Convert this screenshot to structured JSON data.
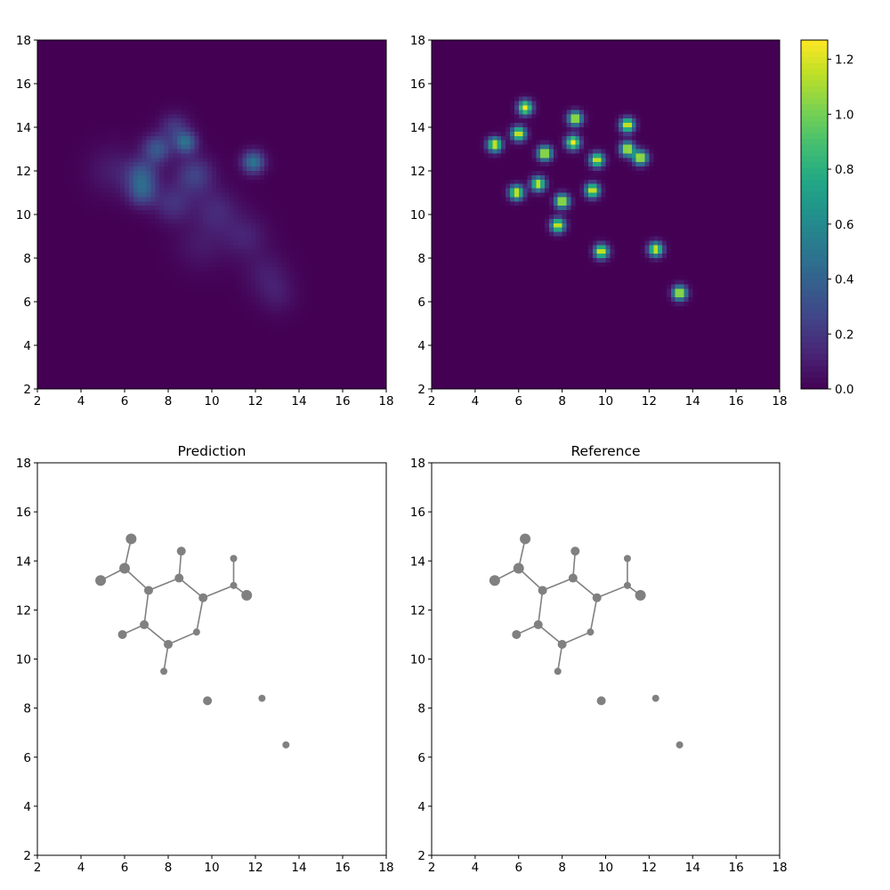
{
  "chart_data": [
    {
      "type": "heatmap",
      "panel": "top-left",
      "title": "",
      "xlim": [
        2,
        18
      ],
      "ylim": [
        2,
        18
      ],
      "x_ticks": [
        2,
        4,
        6,
        8,
        10,
        12,
        14,
        16,
        18
      ],
      "y_ticks": [
        2,
        4,
        6,
        8,
        10,
        12,
        14,
        16,
        18
      ],
      "colormap": "viridis",
      "blobs": [
        {
          "x": 8.8,
          "y": 13.3,
          "peak": 0.45,
          "sigma": 0.35
        },
        {
          "x": 11.9,
          "y": 12.4,
          "peak": 0.5,
          "sigma": 0.35
        },
        {
          "x": 7.5,
          "y": 13.0,
          "peak": 0.35,
          "sigma": 0.45
        },
        {
          "x": 6.8,
          "y": 11.8,
          "peak": 0.32,
          "sigma": 0.5
        },
        {
          "x": 6.8,
          "y": 11.0,
          "peak": 0.3,
          "sigma": 0.45
        },
        {
          "x": 8.3,
          "y": 14.0,
          "peak": 0.2,
          "sigma": 0.45
        },
        {
          "x": 9.2,
          "y": 11.8,
          "peak": 0.25,
          "sigma": 0.6
        },
        {
          "x": 8.2,
          "y": 10.5,
          "peak": 0.18,
          "sigma": 0.6
        },
        {
          "x": 10.2,
          "y": 10.2,
          "peak": 0.14,
          "sigma": 0.7
        },
        {
          "x": 11.5,
          "y": 9.0,
          "peak": 0.12,
          "sigma": 0.7
        },
        {
          "x": 5.5,
          "y": 12.0,
          "peak": 0.1,
          "sigma": 0.8
        },
        {
          "x": 12.5,
          "y": 7.3,
          "peak": 0.09,
          "sigma": 0.7
        },
        {
          "x": 13.0,
          "y": 6.3,
          "peak": 0.08,
          "sigma": 0.6
        },
        {
          "x": 9.5,
          "y": 8.6,
          "peak": 0.08,
          "sigma": 0.8
        }
      ]
    },
    {
      "type": "heatmap",
      "panel": "top-right",
      "title": "",
      "xlim": [
        2,
        18
      ],
      "ylim": [
        2,
        18
      ],
      "x_ticks": [
        2,
        4,
        6,
        8,
        10,
        12,
        14,
        16,
        18
      ],
      "y_ticks": [
        2,
        4,
        6,
        8,
        10,
        12,
        14,
        16,
        18
      ],
      "colormap": "viridis",
      "colorbar": {
        "min": 0.0,
        "max": 1.27,
        "ticks": [
          "0.0",
          "0.2",
          "0.4",
          "0.6",
          "0.8",
          "1.0",
          "1.2"
        ]
      },
      "peaks": [
        {
          "x": 4.9,
          "y": 13.2
        },
        {
          "x": 6.0,
          "y": 13.7
        },
        {
          "x": 6.3,
          "y": 14.9
        },
        {
          "x": 7.2,
          "y": 12.8
        },
        {
          "x": 6.9,
          "y": 11.4
        },
        {
          "x": 5.9,
          "y": 11.0
        },
        {
          "x": 8.5,
          "y": 13.3
        },
        {
          "x": 8.6,
          "y": 14.4
        },
        {
          "x": 9.6,
          "y": 12.5
        },
        {
          "x": 9.4,
          "y": 11.1
        },
        {
          "x": 8.0,
          "y": 10.6
        },
        {
          "x": 7.8,
          "y": 9.5
        },
        {
          "x": 11.0,
          "y": 13.0
        },
        {
          "x": 11.0,
          "y": 14.1
        },
        {
          "x": 11.6,
          "y": 12.6
        },
        {
          "x": 9.8,
          "y": 8.3
        },
        {
          "x": 12.3,
          "y": 8.4
        },
        {
          "x": 13.4,
          "y": 6.4
        }
      ]
    },
    {
      "type": "scatter",
      "panel": "bottom-left",
      "title": "Prediction",
      "xlim": [
        2,
        18
      ],
      "ylim": [
        2,
        18
      ],
      "x_ticks": [
        2,
        4,
        6,
        8,
        10,
        12,
        14,
        16,
        18
      ],
      "y_ticks": [
        2,
        4,
        6,
        8,
        10,
        12,
        14,
        16,
        18
      ],
      "atoms": [
        {
          "x": 4.9,
          "y": 13.2,
          "size": "large"
        },
        {
          "x": 6.0,
          "y": 13.7,
          "size": "large"
        },
        {
          "x": 6.3,
          "y": 14.9,
          "size": "large"
        },
        {
          "x": 7.1,
          "y": 12.8,
          "size": "medium"
        },
        {
          "x": 6.9,
          "y": 11.4,
          "size": "medium"
        },
        {
          "x": 5.9,
          "y": 11.0,
          "size": "medium"
        },
        {
          "x": 8.5,
          "y": 13.3,
          "size": "medium"
        },
        {
          "x": 8.6,
          "y": 14.4,
          "size": "medium"
        },
        {
          "x": 9.6,
          "y": 12.5,
          "size": "medium"
        },
        {
          "x": 9.3,
          "y": 11.1,
          "size": "small"
        },
        {
          "x": 8.0,
          "y": 10.6,
          "size": "medium"
        },
        {
          "x": 7.8,
          "y": 9.5,
          "size": "small"
        },
        {
          "x": 11.0,
          "y": 13.0,
          "size": "small"
        },
        {
          "x": 11.0,
          "y": 14.1,
          "size": "small"
        },
        {
          "x": 11.6,
          "y": 12.6,
          "size": "large"
        },
        {
          "x": 9.8,
          "y": 8.3,
          "size": "medium"
        },
        {
          "x": 12.3,
          "y": 8.4,
          "size": "small"
        },
        {
          "x": 13.4,
          "y": 6.5,
          "size": "small"
        }
      ],
      "bonds": [
        [
          0,
          1
        ],
        [
          1,
          2
        ],
        [
          1,
          3
        ],
        [
          3,
          4
        ],
        [
          4,
          5
        ],
        [
          3,
          6
        ],
        [
          6,
          7
        ],
        [
          6,
          8
        ],
        [
          8,
          9
        ],
        [
          9,
          10
        ],
        [
          10,
          4
        ],
        [
          10,
          11
        ],
        [
          8,
          12
        ],
        [
          12,
          13
        ],
        [
          12,
          14
        ]
      ]
    },
    {
      "type": "scatter",
      "panel": "bottom-right",
      "title": "Reference",
      "xlim": [
        2,
        18
      ],
      "ylim": [
        2,
        18
      ],
      "x_ticks": [
        2,
        4,
        6,
        8,
        10,
        12,
        14,
        16,
        18
      ],
      "y_ticks": [
        2,
        4,
        6,
        8,
        10,
        12,
        14,
        16,
        18
      ],
      "atoms": [
        {
          "x": 4.9,
          "y": 13.2,
          "size": "large"
        },
        {
          "x": 6.0,
          "y": 13.7,
          "size": "large"
        },
        {
          "x": 6.3,
          "y": 14.9,
          "size": "large"
        },
        {
          "x": 7.1,
          "y": 12.8,
          "size": "medium"
        },
        {
          "x": 6.9,
          "y": 11.4,
          "size": "medium"
        },
        {
          "x": 5.9,
          "y": 11.0,
          "size": "medium"
        },
        {
          "x": 8.5,
          "y": 13.3,
          "size": "medium"
        },
        {
          "x": 8.6,
          "y": 14.4,
          "size": "medium"
        },
        {
          "x": 9.6,
          "y": 12.5,
          "size": "medium"
        },
        {
          "x": 9.3,
          "y": 11.1,
          "size": "small"
        },
        {
          "x": 8.0,
          "y": 10.6,
          "size": "medium"
        },
        {
          "x": 7.8,
          "y": 9.5,
          "size": "small"
        },
        {
          "x": 11.0,
          "y": 13.0,
          "size": "small"
        },
        {
          "x": 11.0,
          "y": 14.1,
          "size": "small"
        },
        {
          "x": 11.6,
          "y": 12.6,
          "size": "large"
        },
        {
          "x": 9.8,
          "y": 8.3,
          "size": "medium"
        },
        {
          "x": 12.3,
          "y": 8.4,
          "size": "small"
        },
        {
          "x": 13.4,
          "y": 6.5,
          "size": "small"
        }
      ],
      "bonds": [
        [
          0,
          1
        ],
        [
          1,
          2
        ],
        [
          1,
          3
        ],
        [
          3,
          4
        ],
        [
          4,
          5
        ],
        [
          3,
          6
        ],
        [
          6,
          7
        ],
        [
          6,
          8
        ],
        [
          8,
          9
        ],
        [
          9,
          10
        ],
        [
          10,
          4
        ],
        [
          10,
          11
        ],
        [
          8,
          12
        ],
        [
          12,
          13
        ],
        [
          12,
          14
        ]
      ]
    }
  ],
  "colors": {
    "background_low": "#440154",
    "atom": "#808080",
    "bond": "#808080",
    "axis": "#000000"
  }
}
